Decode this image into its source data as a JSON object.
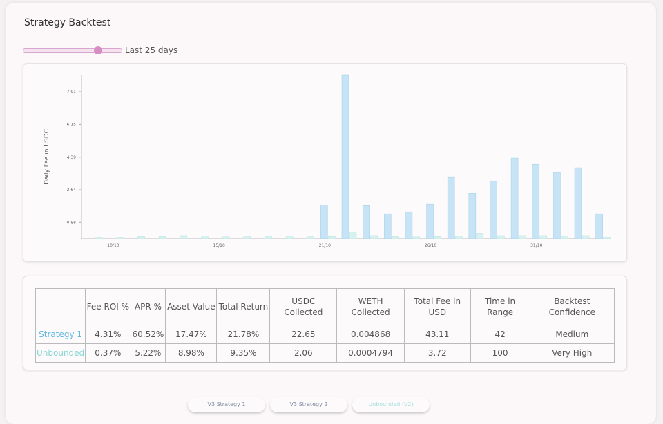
{
  "header": {
    "title": "Strategy Backtest"
  },
  "slider": {
    "label": "Last 25 days"
  },
  "chart_data": {
    "type": "bar",
    "y_label": "Daily Fee in USDC",
    "categories": [
      null,
      "10/10",
      null,
      null,
      null,
      null,
      "15/10",
      null,
      null,
      null,
      null,
      "21/10",
      null,
      null,
      null,
      null,
      "26/10",
      null,
      null,
      null,
      null,
      "31/10",
      null,
      null,
      null
    ],
    "series": [
      {
        "name": "Strategy 1",
        "color": "#c6e4f5",
        "values": [
          0,
          0,
          0,
          0,
          0,
          0,
          0,
          0,
          0,
          0,
          0,
          1.81,
          8.8,
          1.77,
          1.33,
          1.44,
          1.85,
          3.3,
          2.44,
          3.11,
          4.34,
          4.0,
          3.56,
          3.82,
          1.33
        ]
      },
      {
        "name": "Unbounded",
        "color": "#d6f1ef",
        "values": [
          0.05,
          0.05,
          0.1,
          0.1,
          0.15,
          0.08,
          0.08,
          0.12,
          0.12,
          0.12,
          0.12,
          0.1,
          0.35,
          0.15,
          0.1,
          0.08,
          0.1,
          0.12,
          0.28,
          0.15,
          0.15,
          0.15,
          0.12,
          0.15,
          0.05
        ]
      }
    ],
    "ylim": [
      0,
      8.8
    ],
    "yticks": [
      0.88,
      2.64,
      4.39,
      6.15,
      7.91
    ]
  },
  "table": {
    "headers": [
      "Fee ROI %",
      "APR %",
      "Asset Value",
      "Total Return",
      "USDC Collected",
      "WETH Collected",
      "Total Fee in USD",
      "Time in Range",
      "Backtest Confidence"
    ],
    "rows": [
      {
        "label": "Strategy 1",
        "cells": [
          "4.31%",
          "60.52%",
          "17.47%",
          "21.78%",
          "22.65",
          "0.004868",
          "43.11",
          "42",
          "Medium"
        ]
      },
      {
        "label": "Unbounded",
        "cells": [
          "0.37%",
          "5.22%",
          "8.98%",
          "9.35%",
          "2.06",
          "0.0004794",
          "3.72",
          "100",
          "Very High"
        ]
      }
    ]
  },
  "buttons": [
    "V3 Strategy 1",
    "V3 Strategy 2",
    "Unbounded (V2)"
  ]
}
